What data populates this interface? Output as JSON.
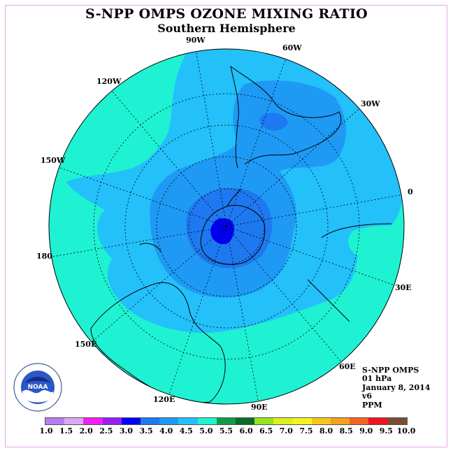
{
  "title": "S-NPP OMPS OZONE MIXING RATIO",
  "subtitle": "Southern Hemisphere",
  "longitude_labels": [
    "90W",
    "60W",
    "30W",
    "0",
    "30E",
    "60E",
    "90E",
    "120E",
    "150E",
    "180",
    "150W",
    "120W"
  ],
  "info": {
    "instrument": "S-NPP OMPS",
    "level": "01 hPa",
    "date": "January 8, 2014",
    "version": "v6",
    "units": "PPM"
  },
  "logo": {
    "text": "NOAA",
    "icon": "noaa-logo"
  },
  "colorbar": {
    "colors": [
      "#b77df0",
      "#dca8f4",
      "#f21ef2",
      "#9a1ef2",
      "#0000f5",
      "#1e78f0",
      "#1e9af5",
      "#23c0fa",
      "#1ef2d2",
      "#0f9a46",
      "#0a6a2a",
      "#96e61e",
      "#dcf01e",
      "#f5f51e",
      "#f5c81e",
      "#f5a01e",
      "#f5641e",
      "#f0141e",
      "#7a4e32"
    ],
    "ticks": [
      "1.0",
      "1.5",
      "2.0",
      "2.5",
      "3.0",
      "3.5",
      "4.0",
      "4.5",
      "5.0",
      "5.5",
      "6.0",
      "6.5",
      "7.0",
      "7.5",
      "8.0",
      "8.5",
      "9.0",
      "9.5",
      "10.0"
    ]
  }
}
